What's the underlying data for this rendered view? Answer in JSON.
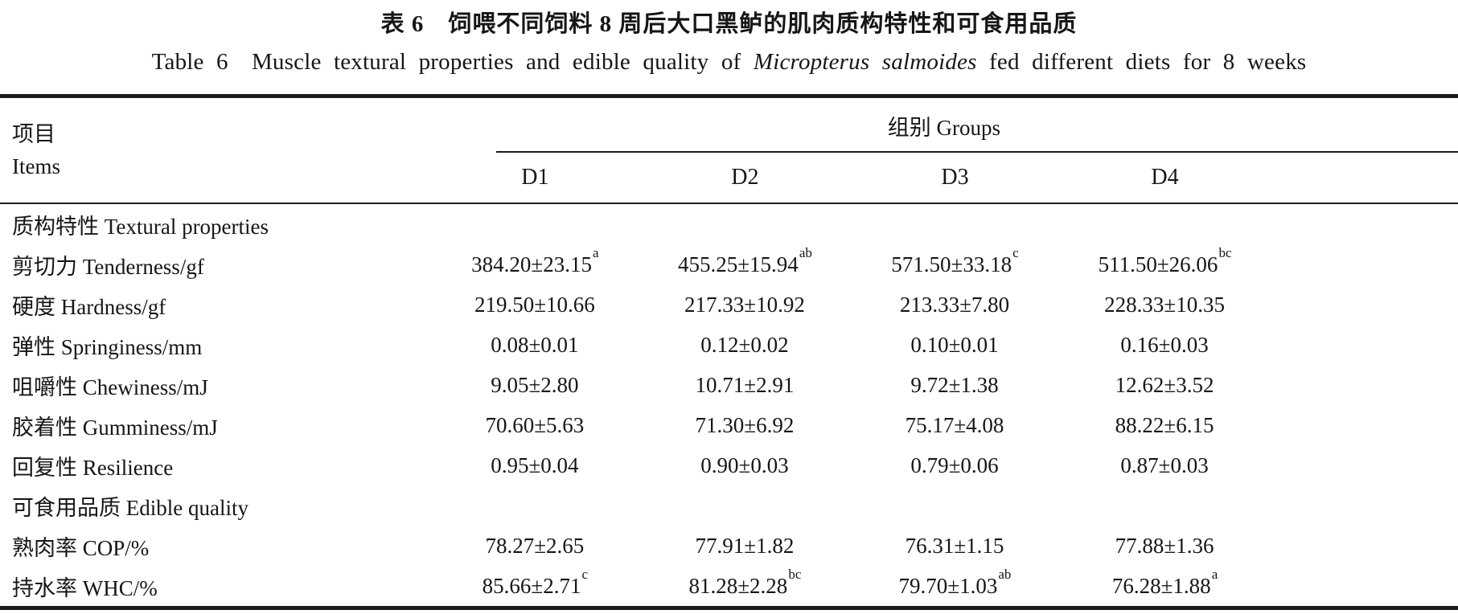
{
  "titles": {
    "cn": "表 6　饲喂不同饲料 8 周后大口黑鲈的肌肉质构特性和可食用品质",
    "en_prefix": "Table 6　Muscle textural properties and edible quality of ",
    "en_species": "Micropterus salmoides",
    "en_suffix": " fed different diets for 8 weeks"
  },
  "table": {
    "items_header_cn": "项目",
    "items_header_en": "Items",
    "groups_header": "组别 Groups",
    "group_columns": [
      "D1",
      "D2",
      "D3",
      "D4"
    ],
    "rows": [
      {
        "type": "section",
        "label": "质构特性 Textural properties"
      },
      {
        "type": "data",
        "label": "剪切力 Tenderness/gf",
        "values": [
          {
            "v": "384.20±23.15",
            "sup": "a"
          },
          {
            "v": "455.25±15.94",
            "sup": "ab"
          },
          {
            "v": "571.50±33.18",
            "sup": "c"
          },
          {
            "v": "511.50±26.06",
            "sup": "bc"
          }
        ]
      },
      {
        "type": "data",
        "label": "硬度 Hardness/gf",
        "values": [
          {
            "v": "219.50±10.66",
            "sup": ""
          },
          {
            "v": "217.33±10.92",
            "sup": ""
          },
          {
            "v": "213.33±7.80",
            "sup": ""
          },
          {
            "v": "228.33±10.35",
            "sup": ""
          }
        ]
      },
      {
        "type": "data",
        "label": "弹性 Springiness/mm",
        "values": [
          {
            "v": "0.08±0.01",
            "sup": ""
          },
          {
            "v": "0.12±0.02",
            "sup": ""
          },
          {
            "v": "0.10±0.01",
            "sup": ""
          },
          {
            "v": "0.16±0.03",
            "sup": ""
          }
        ]
      },
      {
        "type": "data",
        "label": "咀嚼性 Chewiness/mJ",
        "values": [
          {
            "v": "9.05±2.80",
            "sup": ""
          },
          {
            "v": "10.71±2.91",
            "sup": ""
          },
          {
            "v": "9.72±1.38",
            "sup": ""
          },
          {
            "v": "12.62±3.52",
            "sup": ""
          }
        ]
      },
      {
        "type": "data",
        "label": "胶着性 Gumminess/mJ",
        "values": [
          {
            "v": "70.60±5.63",
            "sup": ""
          },
          {
            "v": "71.30±6.92",
            "sup": ""
          },
          {
            "v": "75.17±4.08",
            "sup": ""
          },
          {
            "v": "88.22±6.15",
            "sup": ""
          }
        ]
      },
      {
        "type": "data",
        "label": "回复性 Resilience",
        "values": [
          {
            "v": "0.95±0.04",
            "sup": ""
          },
          {
            "v": "0.90±0.03",
            "sup": ""
          },
          {
            "v": "0.79±0.06",
            "sup": ""
          },
          {
            "v": "0.87±0.03",
            "sup": ""
          }
        ]
      },
      {
        "type": "section",
        "label": "可食用品质 Edible quality"
      },
      {
        "type": "data",
        "label": "熟肉率 COP/%",
        "values": [
          {
            "v": "78.27±2.65",
            "sup": ""
          },
          {
            "v": "77.91±1.82",
            "sup": ""
          },
          {
            "v": "76.31±1.15",
            "sup": ""
          },
          {
            "v": "77.88±1.36",
            "sup": ""
          }
        ]
      },
      {
        "type": "data",
        "label": "持水率 WHC/%",
        "values": [
          {
            "v": "85.66±2.71",
            "sup": "c"
          },
          {
            "v": "81.28±2.28",
            "sup": "bc"
          },
          {
            "v": "79.70±1.03",
            "sup": "ab"
          },
          {
            "v": "76.28±1.88",
            "sup": "a"
          }
        ]
      }
    ]
  }
}
